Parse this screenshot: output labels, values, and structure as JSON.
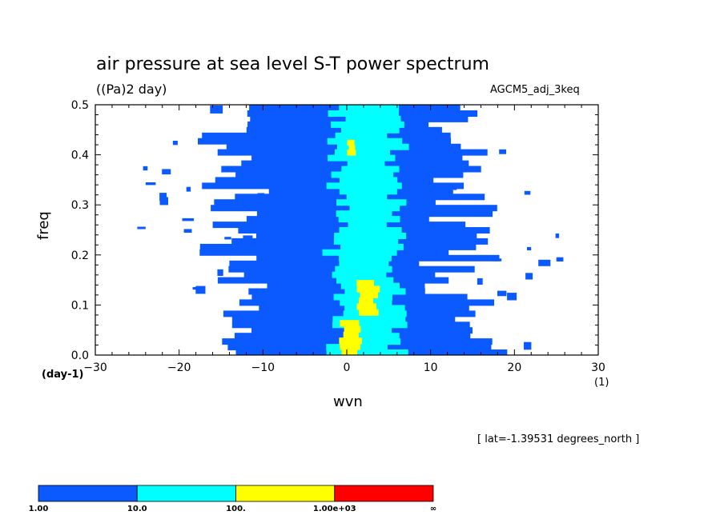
{
  "title": "air pressure at sea level S-T power spectrum",
  "units_label": "((Pa)2 day)",
  "model_label": "AGCM5_adj_3keq",
  "lat_note": "[ lat=-1.39531 degrees_north ]",
  "x_unit_label": "(day-1)",
  "x_unit_right": "(1)",
  "colors": {
    "level1": "#0a5aff",
    "level2": "#00ffff",
    "level3": "#ffff00",
    "level4": "#ff0000"
  },
  "chart_data": {
    "type": "heatmap",
    "xlabel": "wvn",
    "ylabel": "freq",
    "xlim": [
      -30,
      30
    ],
    "ylim": [
      0,
      0.5
    ],
    "x_ticks": [
      "-30",
      "-20",
      "-10",
      "0",
      "10",
      "20",
      "30"
    ],
    "y_ticks": [
      "0.0",
      "0.1",
      "0.2",
      "0.3",
      "0.4",
      "0.5"
    ],
    "contour_levels": [
      "1.00",
      "10.0",
      "100.",
      "1.00e+03",
      "∞"
    ],
    "colorbar_colors": [
      "#0a5aff",
      "#00ffff",
      "#ffff00",
      "#ff0000"
    ],
    "regions": [
      {
        "level": 1,
        "wvn_min": -15,
        "wvn_max": 16,
        "freq_min": 0.0,
        "freq_max": 0.5
      },
      {
        "level": 2,
        "wvn_min": -2,
        "wvn_max": 7,
        "freq_min": 0.0,
        "freq_max": 0.5
      },
      {
        "level": 3,
        "wvn_min": -1,
        "wvn_max": 2,
        "freq_min": 0.0,
        "freq_max": 0.07
      },
      {
        "level": 3,
        "wvn_min": 1,
        "wvn_max": 4,
        "freq_min": 0.08,
        "freq_max": 0.15
      },
      {
        "level": 3,
        "wvn_min": 0,
        "wvn_max": 1,
        "freq_min": 0.4,
        "freq_max": 0.43
      }
    ]
  }
}
